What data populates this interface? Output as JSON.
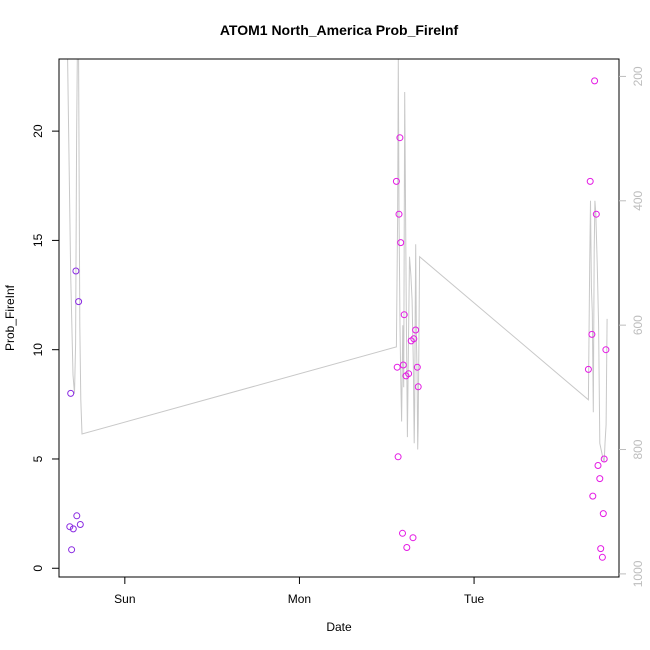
{
  "chart_data": {
    "type": "scatter",
    "title": "ATOM1 North_America Prob_FireInf",
    "xlabel": "Date",
    "ylabel": "Prob_FireInf",
    "x_tick_labels": [
      "Sun",
      "Mon",
      "Tue"
    ],
    "x_ticks_day": [
      1,
      2,
      3
    ],
    "xlim_day": [
      0.623,
      3.83
    ],
    "ylim": [
      -0.4,
      23.3
    ],
    "y_ticks": [
      0,
      5,
      10,
      15,
      20
    ],
    "y2_ticks": [
      200,
      400,
      600,
      800,
      1000
    ],
    "y2lim": [
      1005,
      172
    ],
    "y2_reversed": true,
    "colors": {
      "point_purple": "#8a2be2",
      "point_magenta": "#e41ae4",
      "line": "#c8c8c8",
      "right_axis": "#bdbdbd"
    },
    "points": [
      {
        "x": 0.685,
        "y": 1.9,
        "c": "purple"
      },
      {
        "x": 0.69,
        "y": 8.0,
        "c": "purple"
      },
      {
        "x": 0.695,
        "y": 0.85,
        "c": "purple"
      },
      {
        "x": 0.705,
        "y": 1.8,
        "c": "purple"
      },
      {
        "x": 0.72,
        "y": 13.6,
        "c": "purple"
      },
      {
        "x": 0.725,
        "y": 2.4,
        "c": "purple"
      },
      {
        "x": 0.735,
        "y": 12.2,
        "c": "purple"
      },
      {
        "x": 0.745,
        "y": 2.0,
        "c": "purple"
      },
      {
        "x": 2.555,
        "y": 17.7,
        "c": "magenta"
      },
      {
        "x": 2.56,
        "y": 9.2,
        "c": "magenta"
      },
      {
        "x": 2.565,
        "y": 5.1,
        "c": "magenta"
      },
      {
        "x": 2.57,
        "y": 16.2,
        "c": "magenta"
      },
      {
        "x": 2.575,
        "y": 19.7,
        "c": "magenta"
      },
      {
        "x": 2.58,
        "y": 14.9,
        "c": "magenta"
      },
      {
        "x": 2.59,
        "y": 1.6,
        "c": "magenta"
      },
      {
        "x": 2.595,
        "y": 9.3,
        "c": "magenta"
      },
      {
        "x": 2.6,
        "y": 11.6,
        "c": "magenta"
      },
      {
        "x": 2.61,
        "y": 8.8,
        "c": "magenta"
      },
      {
        "x": 2.615,
        "y": 0.95,
        "c": "magenta"
      },
      {
        "x": 2.625,
        "y": 8.9,
        "c": "magenta"
      },
      {
        "x": 2.64,
        "y": 10.4,
        "c": "magenta"
      },
      {
        "x": 2.65,
        "y": 1.4,
        "c": "magenta"
      },
      {
        "x": 2.655,
        "y": 10.5,
        "c": "magenta"
      },
      {
        "x": 2.665,
        "y": 10.9,
        "c": "magenta"
      },
      {
        "x": 2.675,
        "y": 9.2,
        "c": "magenta"
      },
      {
        "x": 2.68,
        "y": 8.3,
        "c": "magenta"
      },
      {
        "x": 3.655,
        "y": 9.1,
        "c": "magenta"
      },
      {
        "x": 3.665,
        "y": 17.7,
        "c": "magenta"
      },
      {
        "x": 3.675,
        "y": 10.7,
        "c": "magenta"
      },
      {
        "x": 3.68,
        "y": 3.3,
        "c": "magenta"
      },
      {
        "x": 3.69,
        "y": 22.3,
        "c": "magenta"
      },
      {
        "x": 3.7,
        "y": 16.2,
        "c": "magenta"
      },
      {
        "x": 3.71,
        "y": 4.7,
        "c": "magenta"
      },
      {
        "x": 3.72,
        "y": 4.1,
        "c": "magenta"
      },
      {
        "x": 3.725,
        "y": 0.9,
        "c": "magenta"
      },
      {
        "x": 3.735,
        "y": 0.5,
        "c": "magenta"
      },
      {
        "x": 3.74,
        "y": 2.5,
        "c": "magenta"
      },
      {
        "x": 3.745,
        "y": 5.0,
        "c": "magenta"
      },
      {
        "x": 3.755,
        "y": 10.0,
        "c": "magenta"
      }
    ],
    "line_y2": [
      [
        0.672,
        170
      ],
      [
        0.69,
        520
      ],
      [
        0.703,
        680
      ],
      [
        0.712,
        710
      ],
      [
        0.718,
        630
      ],
      [
        0.724,
        300
      ],
      [
        0.728,
        170
      ],
      [
        0.735,
        170
      ],
      [
        0.742,
        600
      ],
      [
        0.748,
        720
      ],
      [
        0.755,
        775
      ],
      [
        2.555,
        635
      ],
      [
        2.562,
        430
      ],
      [
        2.566,
        170
      ],
      [
        2.57,
        420
      ],
      [
        2.576,
        600
      ],
      [
        2.58,
        680
      ],
      [
        2.585,
        755
      ],
      [
        2.592,
        600
      ],
      [
        2.597,
        700
      ],
      [
        2.603,
        225
      ],
      [
        2.607,
        380
      ],
      [
        2.612,
        580
      ],
      [
        2.618,
        780
      ],
      [
        2.625,
        610
      ],
      [
        2.63,
        490
      ],
      [
        2.638,
        520
      ],
      [
        2.645,
        560
      ],
      [
        2.652,
        660
      ],
      [
        2.657,
        790
      ],
      [
        2.66,
        730
      ],
      [
        2.663,
        580
      ],
      [
        2.666,
        470
      ],
      [
        2.67,
        620
      ],
      [
        2.674,
        680
      ],
      [
        2.677,
        800
      ],
      [
        2.68,
        760
      ],
      [
        2.684,
        630
      ],
      [
        2.688,
        490
      ],
      [
        3.655,
        720
      ],
      [
        3.662,
        500
      ],
      [
        3.667,
        400
      ],
      [
        3.672,
        540
      ],
      [
        3.677,
        580
      ],
      [
        3.683,
        740
      ],
      [
        3.688,
        480
      ],
      [
        3.692,
        400
      ],
      [
        3.697,
        420
      ],
      [
        3.705,
        500
      ],
      [
        3.713,
        600
      ],
      [
        3.72,
        790
      ],
      [
        3.735,
        810
      ],
      [
        3.745,
        820
      ],
      [
        3.75,
        790
      ],
      [
        3.756,
        760
      ],
      [
        3.762,
        590
      ]
    ]
  }
}
